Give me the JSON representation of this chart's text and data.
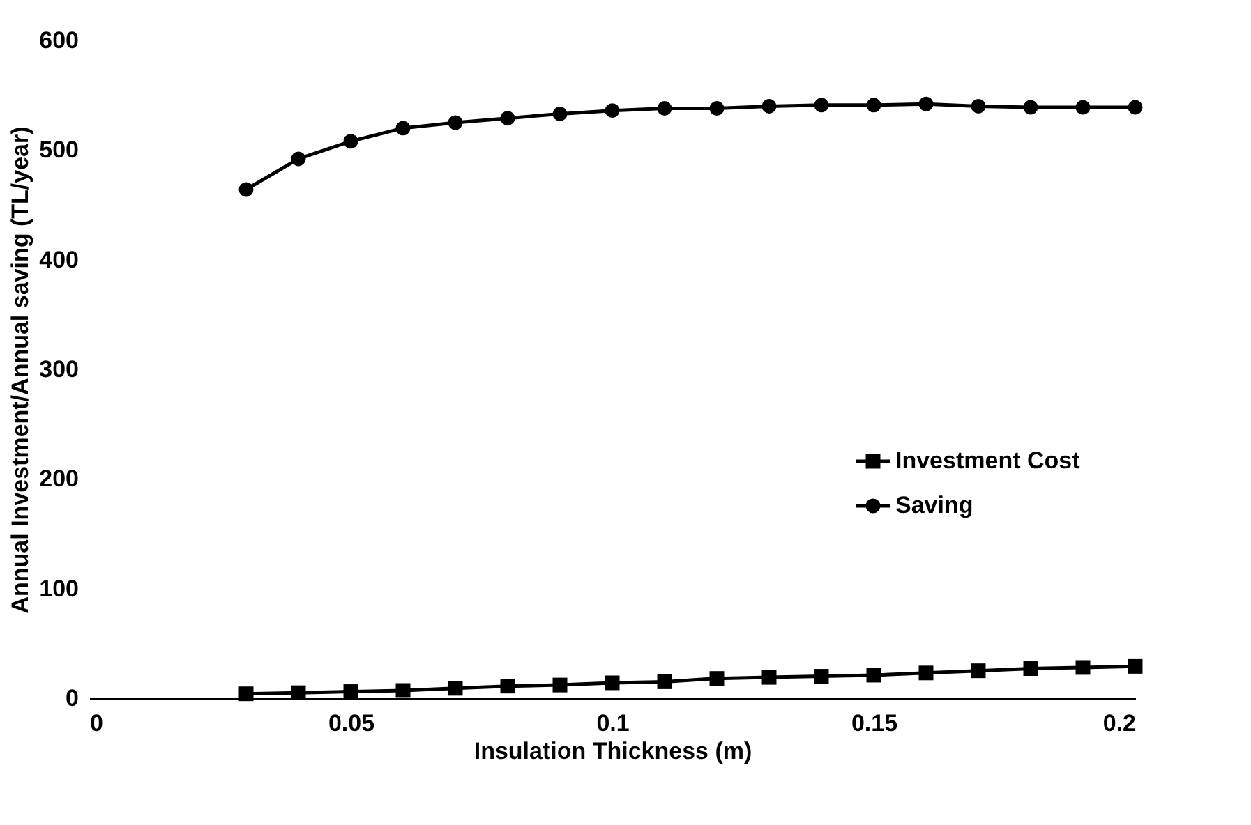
{
  "chart_data": {
    "type": "line",
    "xlabel": "Insulation Thickness (m)",
    "ylabel": "Annual Investment/Annual saving (TL/year)",
    "x": [
      0.03,
      0.04,
      0.05,
      0.06,
      0.07,
      0.08,
      0.09,
      0.1,
      0.11,
      0.12,
      0.13,
      0.14,
      0.15,
      0.16,
      0.17,
      0.18,
      0.19,
      0.2
    ],
    "series": [
      {
        "name": "Investment Cost",
        "color": "#000000",
        "marker": "square",
        "values": [
          4,
          5,
          6,
          7,
          9,
          11,
          12,
          14,
          15,
          18,
          19,
          20,
          21,
          23,
          25,
          27,
          28,
          29
        ]
      },
      {
        "name": "Saving",
        "color": "#000000",
        "marker": "circle",
        "values": [
          464,
          492,
          508,
          520,
          525,
          529,
          533,
          536,
          538,
          538,
          540,
          541,
          541,
          542,
          540,
          539,
          539,
          539
        ]
      }
    ],
    "xlim": [
      0,
      0.2
    ],
    "xticks": [
      {
        "value": 0,
        "label": "0"
      },
      0.05,
      {
        "value": 0.1,
        "label": "0.1"
      },
      0.15,
      {
        "value": 0.2,
        "label": "0.2"
      }
    ],
    "ylim": [
      0,
      600
    ],
    "yticks": [
      0,
      100,
      200,
      300,
      400,
      500,
      600
    ],
    "grid": false,
    "legend": "bottom right",
    "line_style": "solid"
  }
}
